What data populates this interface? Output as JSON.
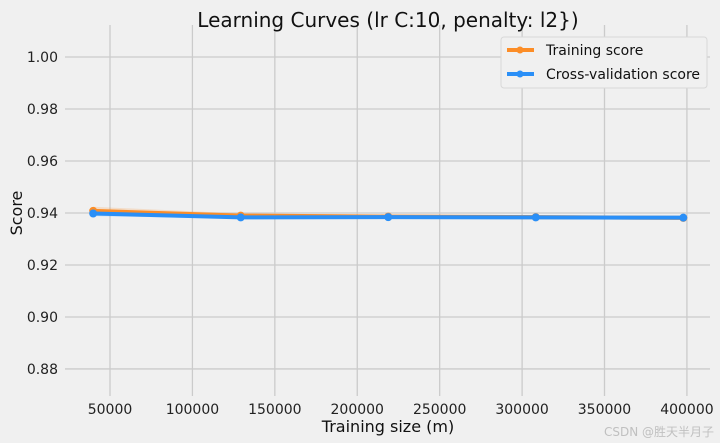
{
  "chart_data": {
    "type": "line",
    "title": "Learning Curves (lr C:10, penalty: l2})",
    "xlabel": "Training size (m)",
    "ylabel": "Score",
    "xlim": [
      22700,
      414000
    ],
    "ylim": [
      0.8696,
      1.0123
    ],
    "xticks": [
      50000,
      100000,
      150000,
      200000,
      250000,
      300000,
      350000,
      400000
    ],
    "yticks": [
      "0.88",
      "0.90",
      "0.92",
      "0.94",
      "0.96",
      "0.98",
      "1.00"
    ],
    "grid": true,
    "legend_position": "top-right",
    "x": [
      39800,
      129300,
      218800,
      308300,
      397800
    ],
    "series": [
      {
        "name": "Training score",
        "color": "#fc8d27",
        "values": [
          0.9408,
          0.939,
          0.9386,
          0.9384,
          0.9381
        ],
        "band": 0.0008
      },
      {
        "name": "Cross-validation score",
        "color": "#2a8ff7",
        "values": [
          0.9398,
          0.9383,
          0.9384,
          0.9383,
          0.9382
        ],
        "band": 0.0005
      }
    ]
  },
  "watermark": "CSDN @胜天半月子"
}
